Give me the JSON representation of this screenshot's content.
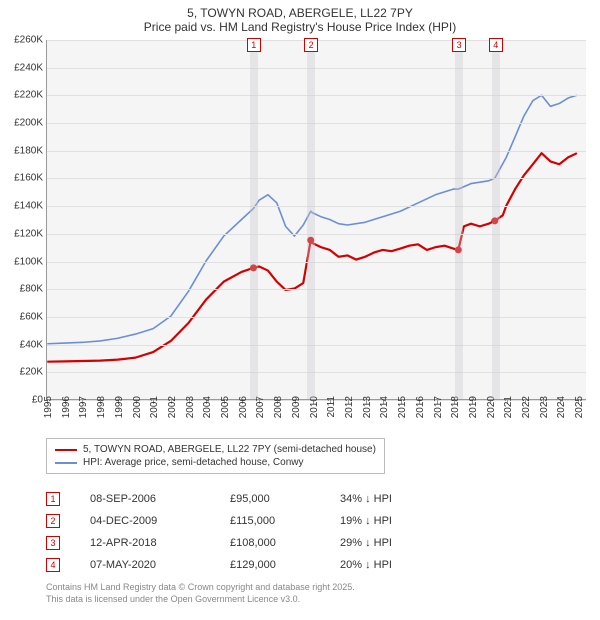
{
  "title": {
    "line1": "5, TOWYN ROAD, ABERGELE, LL22 7PY",
    "line2": "Price paid vs. HM Land Registry's House Price Index (HPI)"
  },
  "chart": {
    "type": "line",
    "background_color": "#f5f5f5",
    "grid_color": "#e0e0e0",
    "axis_color": "#999999",
    "x": {
      "min": 1995,
      "max": 2025.5,
      "ticks": [
        1995,
        1996,
        1997,
        1998,
        1999,
        2000,
        2001,
        2002,
        2003,
        2004,
        2005,
        2006,
        2007,
        2008,
        2009,
        2010,
        2011,
        2012,
        2013,
        2014,
        2015,
        2016,
        2017,
        2018,
        2019,
        2020,
        2021,
        2022,
        2023,
        2024,
        2025
      ]
    },
    "y": {
      "min": 0,
      "max": 260000,
      "step": 20000,
      "prefix": "£",
      "suffix": "K",
      "divisor": 1000
    },
    "series": [
      {
        "id": "price_paid",
        "label": "5, TOWYN ROAD, ABERGELE, LL22 7PY (semi-detached house)",
        "color": "#d40000",
        "width": 2.2,
        "points": [
          [
            1995,
            27000
          ],
          [
            1996,
            27200
          ],
          [
            1997,
            27500
          ],
          [
            1998,
            27800
          ],
          [
            1999,
            28500
          ],
          [
            2000,
            30000
          ],
          [
            2001,
            34000
          ],
          [
            2002,
            42000
          ],
          [
            2003,
            55000
          ],
          [
            2004,
            72000
          ],
          [
            2005,
            85000
          ],
          [
            2006,
            92000
          ],
          [
            2006.68,
            95000
          ],
          [
            2007,
            96000
          ],
          [
            2007.5,
            93000
          ],
          [
            2008,
            85000
          ],
          [
            2008.5,
            79000
          ],
          [
            2009,
            80000
          ],
          [
            2009.5,
            84000
          ],
          [
            2009.92,
            115000
          ],
          [
            2010,
            113000
          ],
          [
            2010.5,
            110000
          ],
          [
            2011,
            108000
          ],
          [
            2011.5,
            103000
          ],
          [
            2012,
            104000
          ],
          [
            2012.5,
            101000
          ],
          [
            2013,
            103000
          ],
          [
            2013.5,
            106000
          ],
          [
            2014,
            108000
          ],
          [
            2014.5,
            107000
          ],
          [
            2015,
            109000
          ],
          [
            2015.5,
            111000
          ],
          [
            2016,
            112000
          ],
          [
            2016.5,
            108000
          ],
          [
            2017,
            110000
          ],
          [
            2017.5,
            111000
          ],
          [
            2018,
            109000
          ],
          [
            2018.28,
            108000
          ],
          [
            2018.6,
            125000
          ],
          [
            2019,
            127000
          ],
          [
            2019.5,
            125000
          ],
          [
            2020,
            127000
          ],
          [
            2020.35,
            129000
          ],
          [
            2020.8,
            133000
          ],
          [
            2021,
            140000
          ],
          [
            2021.5,
            152000
          ],
          [
            2022,
            162000
          ],
          [
            2022.5,
            170000
          ],
          [
            2023,
            178000
          ],
          [
            2023.5,
            172000
          ],
          [
            2024,
            170000
          ],
          [
            2024.5,
            175000
          ],
          [
            2025,
            178000
          ]
        ]
      },
      {
        "id": "hpi",
        "label": "HPI: Average price, semi-detached house, Conwy",
        "color": "#6a8fd8",
        "width": 1.6,
        "points": [
          [
            1995,
            40000
          ],
          [
            1996,
            40500
          ],
          [
            1997,
            41000
          ],
          [
            1998,
            42000
          ],
          [
            1999,
            44000
          ],
          [
            2000,
            47000
          ],
          [
            2001,
            51000
          ],
          [
            2002,
            60000
          ],
          [
            2003,
            78000
          ],
          [
            2004,
            100000
          ],
          [
            2005,
            118000
          ],
          [
            2006,
            130000
          ],
          [
            2006.68,
            138000
          ],
          [
            2007,
            144000
          ],
          [
            2007.5,
            148000
          ],
          [
            2008,
            142000
          ],
          [
            2008.5,
            125000
          ],
          [
            2009,
            118000
          ],
          [
            2009.5,
            126000
          ],
          [
            2009.92,
            136000
          ],
          [
            2010,
            135000
          ],
          [
            2010.5,
            132000
          ],
          [
            2011,
            130000
          ],
          [
            2011.5,
            127000
          ],
          [
            2012,
            126000
          ],
          [
            2013,
            128000
          ],
          [
            2014,
            132000
          ],
          [
            2015,
            136000
          ],
          [
            2016,
            142000
          ],
          [
            2017,
            148000
          ],
          [
            2018,
            152000
          ],
          [
            2018.28,
            152000
          ],
          [
            2019,
            156000
          ],
          [
            2020,
            158000
          ],
          [
            2020.35,
            160000
          ],
          [
            2021,
            175000
          ],
          [
            2021.5,
            190000
          ],
          [
            2022,
            205000
          ],
          [
            2022.5,
            216000
          ],
          [
            2023,
            220000
          ],
          [
            2023.5,
            212000
          ],
          [
            2024,
            214000
          ],
          [
            2024.5,
            218000
          ],
          [
            2025,
            220000
          ]
        ]
      }
    ],
    "markers": [
      {
        "n": "1",
        "year": 2006.68
      },
      {
        "n": "2",
        "year": 2009.92
      },
      {
        "n": "3",
        "year": 2018.28
      },
      {
        "n": "4",
        "year": 2020.35
      }
    ],
    "transaction_dots": [
      {
        "year": 2006.68,
        "value": 95000
      },
      {
        "year": 2009.92,
        "value": 115000
      },
      {
        "year": 2018.28,
        "value": 108000
      },
      {
        "year": 2020.35,
        "value": 129000
      }
    ]
  },
  "transactions": [
    {
      "n": "1",
      "date": "08-SEP-2006",
      "price": "£95,000",
      "diff": "34% ↓ HPI"
    },
    {
      "n": "2",
      "date": "04-DEC-2009",
      "price": "£115,000",
      "diff": "19% ↓ HPI"
    },
    {
      "n": "3",
      "date": "12-APR-2018",
      "price": "£108,000",
      "diff": "29% ↓ HPI"
    },
    {
      "n": "4",
      "date": "07-MAY-2020",
      "price": "£129,000",
      "diff": "20% ↓ HPI"
    }
  ],
  "attribution": {
    "line1": "Contains HM Land Registry data © Crown copyright and database right 2025.",
    "line2": "This data is licensed under the Open Government Licence v3.0."
  }
}
